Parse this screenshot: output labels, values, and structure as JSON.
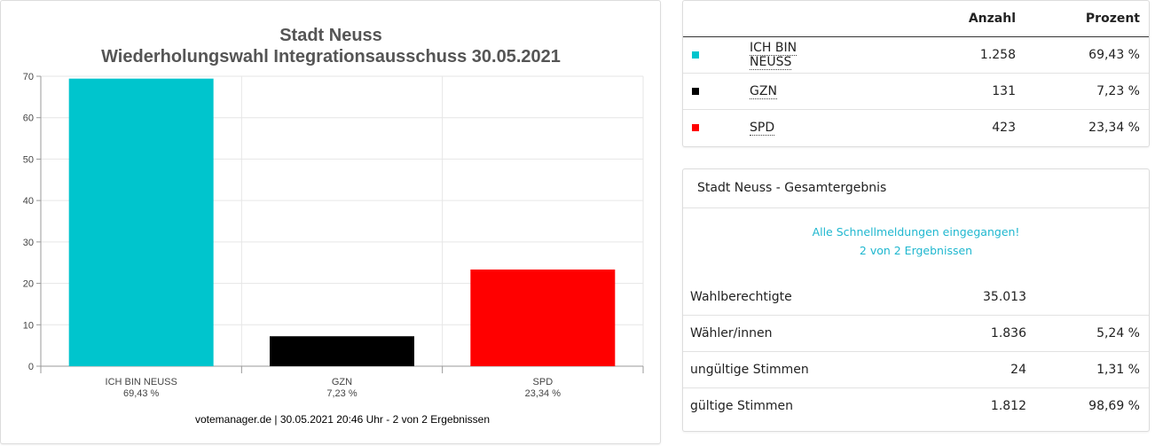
{
  "chart_data": {
    "type": "bar",
    "title": "Stadt Neuss",
    "subtitle": "Wiederholungswahl Integrationsausschuss 30.05.2021",
    "categories": [
      "ICH BIN NEUSS",
      "GZN",
      "SPD"
    ],
    "category_percent_labels": [
      "69,43 %",
      "7,23 %",
      "23,34 %"
    ],
    "values": [
      69.43,
      7.23,
      23.34
    ],
    "colors": [
      "#00c5cd",
      "#000000",
      "#ff0000"
    ],
    "ylim": [
      0,
      70
    ],
    "yticks": [
      0,
      10,
      20,
      30,
      40,
      50,
      60,
      70
    ],
    "xlabel": "",
    "ylabel": "",
    "grid": true,
    "footer": "votemanager.de | 30.05.2021 20:46 Uhr - 2 von 2 Ergebnissen"
  },
  "results": {
    "headers": {
      "count": "Anzahl",
      "percent": "Prozent"
    },
    "rows": [
      {
        "name": "ICH BIN NEUSS",
        "count": "1.258",
        "percent": "69,43 %",
        "color": "#00c5cd"
      },
      {
        "name": "GZN",
        "count": "131",
        "percent": "7,23 %",
        "color": "#000000"
      },
      {
        "name": "SPD",
        "count": "423",
        "percent": "23,34 %",
        "color": "#ff0000"
      }
    ]
  },
  "summary": {
    "title": "Stadt Neuss - Gesamtergebnis",
    "notice_line1": "Alle Schnellmeldungen eingegangen!",
    "notice_line2": "2 von 2 Ergebnissen",
    "rows": [
      {
        "label": "Wahlberechtigte",
        "count": "35.013",
        "percent": ""
      },
      {
        "label": "Wähler/innen",
        "count": "1.836",
        "percent": "5,24 %"
      },
      {
        "label": "ungültige Stimmen",
        "count": "24",
        "percent": "1,31 %"
      },
      {
        "label": "gültige Stimmen",
        "count": "1.812",
        "percent": "98,69 %"
      }
    ]
  }
}
